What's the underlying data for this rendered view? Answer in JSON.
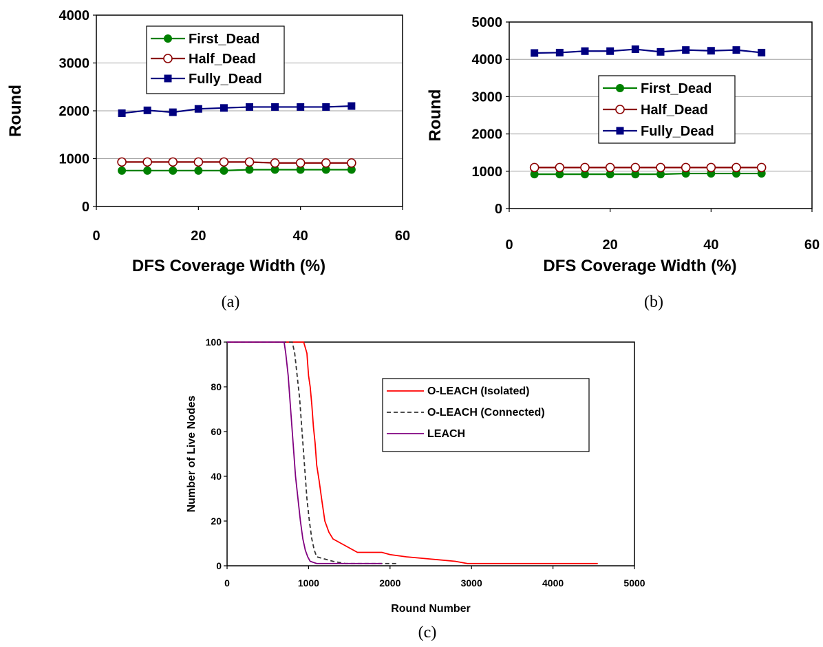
{
  "chart_data": [
    {
      "type": "line",
      "caption": "(a)",
      "xlabel": "DFS Coverage Width (%)",
      "ylabel": "Round",
      "xlim": [
        0,
        60
      ],
      "ylim": [
        0,
        4000
      ],
      "xticks": [
        0,
        20,
        40,
        60
      ],
      "yticks": [
        0,
        1000,
        2000,
        3000,
        4000
      ],
      "grid": "horizontal",
      "legend": "top-center",
      "x": [
        5,
        10,
        15,
        20,
        25,
        30,
        35,
        40,
        45,
        50
      ],
      "series": [
        {
          "name": "First_Dead",
          "color": "#008000",
          "marker": "filled-circle",
          "values": [
            750,
            750,
            750,
            750,
            750,
            770,
            770,
            770,
            770,
            770
          ]
        },
        {
          "name": "Half_Dead",
          "color": "#8b0000",
          "marker": "open-circle",
          "values": [
            930,
            930,
            930,
            930,
            930,
            930,
            910,
            910,
            910,
            910
          ]
        },
        {
          "name": "Fully_Dead",
          "color": "#000080",
          "marker": "filled-square",
          "values": [
            1950,
            2010,
            1970,
            2040,
            2060,
            2080,
            2080,
            2080,
            2080,
            2100
          ]
        }
      ]
    },
    {
      "type": "line",
      "caption": "(b)",
      "xlabel": "DFS Coverage Width (%)",
      "ylabel": "Round",
      "xlim": [
        0,
        60
      ],
      "ylim": [
        0,
        5000
      ],
      "xticks": [
        0,
        20,
        40,
        60
      ],
      "yticks": [
        0,
        1000,
        2000,
        3000,
        4000,
        5000
      ],
      "grid": "horizontal",
      "legend": "center-right",
      "x": [
        5,
        10,
        15,
        20,
        25,
        30,
        35,
        40,
        45,
        50
      ],
      "series": [
        {
          "name": "First_Dead",
          "color": "#008000",
          "marker": "filled-circle",
          "values": [
            920,
            920,
            920,
            920,
            920,
            920,
            940,
            940,
            940,
            940
          ]
        },
        {
          "name": "Half_Dead",
          "color": "#8b0000",
          "marker": "open-circle",
          "values": [
            1100,
            1100,
            1100,
            1100,
            1100,
            1100,
            1100,
            1100,
            1100,
            1100
          ]
        },
        {
          "name": "Fully_Dead",
          "color": "#000080",
          "marker": "filled-square",
          "values": [
            4170,
            4180,
            4220,
            4220,
            4270,
            4200,
            4250,
            4230,
            4250,
            4180
          ]
        }
      ]
    },
    {
      "type": "line",
      "caption": "(c)",
      "xlabel": "Round Number",
      "ylabel": "Number of Live Nodes",
      "xlim": [
        0,
        5000
      ],
      "ylim": [
        0,
        100
      ],
      "xticks": [
        0,
        1000,
        2000,
        3000,
        4000,
        5000
      ],
      "yticks": [
        0,
        20,
        40,
        60,
        80,
        100
      ],
      "grid": "none",
      "legend": "top-right",
      "series": [
        {
          "name": "O-LEACH (Isolated)",
          "color": "#ff0000",
          "style": "solid",
          "points": [
            [
              0,
              100
            ],
            [
              940,
              100
            ],
            [
              980,
              95
            ],
            [
              1000,
              85
            ],
            [
              1020,
              80
            ],
            [
              1040,
              72
            ],
            [
              1060,
              62
            ],
            [
              1080,
              55
            ],
            [
              1100,
              45
            ],
            [
              1130,
              38
            ],
            [
              1160,
              30
            ],
            [
              1200,
              20
            ],
            [
              1250,
              15
            ],
            [
              1300,
              12
            ],
            [
              1400,
              10
            ],
            [
              1500,
              8
            ],
            [
              1600,
              6
            ],
            [
              1900,
              6
            ],
            [
              2000,
              5
            ],
            [
              2200,
              4
            ],
            [
              2500,
              3
            ],
            [
              2800,
              2
            ],
            [
              2950,
              1
            ],
            [
              4550,
              1
            ]
          ]
        },
        {
          "name": "O-LEACH (Connected)",
          "color": "#333333",
          "style": "dashed",
          "points": [
            [
              0,
              100
            ],
            [
              800,
              100
            ],
            [
              830,
              95
            ],
            [
              860,
              85
            ],
            [
              890,
              75
            ],
            [
              920,
              60
            ],
            [
              950,
              45
            ],
            [
              980,
              30
            ],
            [
              1010,
              20
            ],
            [
              1040,
              12
            ],
            [
              1070,
              7
            ],
            [
              1100,
              4
            ],
            [
              1200,
              3
            ],
            [
              1300,
              2
            ],
            [
              1450,
              1
            ],
            [
              2100,
              1
            ]
          ]
        },
        {
          "name": "LEACH",
          "color": "#800080",
          "style": "solid",
          "points": [
            [
              0,
              100
            ],
            [
              700,
              100
            ],
            [
              720,
              95
            ],
            [
              750,
              85
            ],
            [
              780,
              70
            ],
            [
              810,
              55
            ],
            [
              840,
              40
            ],
            [
              870,
              30
            ],
            [
              900,
              20
            ],
            [
              930,
              12
            ],
            [
              960,
              7
            ],
            [
              990,
              4
            ],
            [
              1020,
              2
            ],
            [
              1100,
              1
            ],
            [
              1900,
              1
            ]
          ]
        }
      ]
    }
  ]
}
